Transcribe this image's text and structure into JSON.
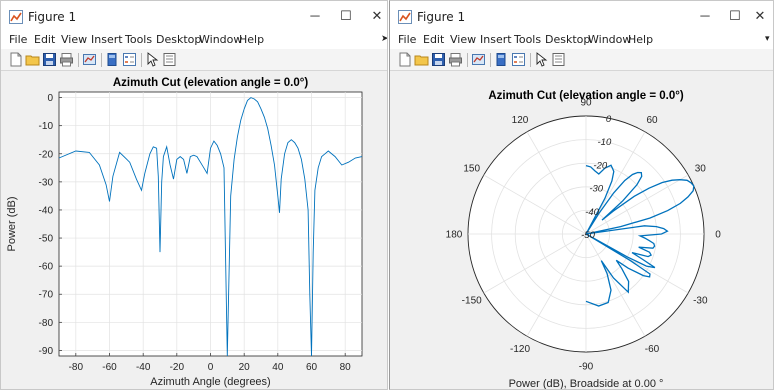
{
  "left_window": {
    "title": "Figure 1",
    "controls": {
      "minimize": "─",
      "maximize": "☐",
      "close": "✕"
    },
    "menu": [
      {
        "label": "File"
      },
      {
        "label": "Edit"
      },
      {
        "label": "View"
      },
      {
        "label": "Insert"
      },
      {
        "label": "Tools"
      },
      {
        "label": "Desktop"
      },
      {
        "label": "Window"
      },
      {
        "label": "Help"
      }
    ],
    "menu_overflow": "➤",
    "toolbar_icons": [
      "new-figure-icon",
      "open-file-icon",
      "save-icon",
      "print-icon",
      "link-plot-icon",
      "insert-colorbar-icon",
      "insert-legend-icon",
      "edit-plot-icon",
      "property-inspector-icon"
    ]
  },
  "right_window": {
    "title": "Figure 1",
    "controls": {
      "minimize": "─",
      "maximize": "☐",
      "close": "✕"
    },
    "menu": [
      {
        "label": "File"
      },
      {
        "label": "Edit"
      },
      {
        "label": "View"
      },
      {
        "label": "Insert"
      },
      {
        "label": "Tools"
      },
      {
        "label": "Desktop"
      },
      {
        "label": "Window"
      },
      {
        "label": "Help"
      }
    ],
    "menu_overflow": "▾",
    "toolbar_icons": [
      "new-figure-icon",
      "open-file-icon",
      "save-icon",
      "print-icon",
      "link-plot-icon",
      "insert-colorbar-icon",
      "insert-legend-icon",
      "edit-plot-icon",
      "property-inspector-icon"
    ]
  },
  "colors": {
    "line": "#0072bd",
    "axes_bg": "#ffffff",
    "grid": "#e2e2e2",
    "figure_bg": "#f0f0f0"
  },
  "chart_data": [
    {
      "type": "line",
      "title": "Azimuth Cut (elevation angle = 0.0°)",
      "xlabel": "Azimuth Angle (degrees)",
      "ylabel": "Power (dB)",
      "xlim": [
        -90,
        90
      ],
      "ylim": [
        -92,
        2
      ],
      "xticks": [
        -80,
        -60,
        -40,
        -20,
        0,
        20,
        40,
        60,
        80
      ],
      "yticks": [
        0,
        -10,
        -20,
        -30,
        -40,
        -50,
        -60,
        -70,
        -80,
        -90
      ],
      "grid": true,
      "series": [
        {
          "x": [
            -90,
            -80,
            -72,
            -66,
            -62,
            -60,
            -58,
            -54,
            -48,
            -44,
            -41,
            -39,
            -36,
            -34,
            -32,
            -31,
            -30,
            -29,
            -28,
            -26,
            -24,
            -22,
            -20,
            -18,
            -16,
            -14,
            -12,
            -10,
            -8,
            -6,
            -4,
            -2,
            0,
            2,
            4,
            6,
            8,
            10,
            12,
            14,
            16,
            18,
            20,
            22,
            24,
            26,
            28,
            30,
            32,
            34,
            36,
            38,
            40,
            41,
            42,
            44,
            46,
            48,
            50,
            52,
            54,
            56,
            58,
            59,
            60,
            61,
            62,
            64,
            66,
            68,
            70,
            74,
            78,
            82,
            86,
            90
          ],
          "y": [
            -21.5,
            -19,
            -19.5,
            -24,
            -31,
            -37,
            -28,
            -19.5,
            -23,
            -29,
            -33,
            -27,
            -20,
            -17.5,
            -18,
            -28,
            -55,
            -30,
            -21,
            -17.5,
            -24,
            -29,
            -22,
            -21,
            -22,
            -27,
            -21,
            -20.5,
            -21,
            -23,
            -25,
            -27,
            -18,
            -15.5,
            -17,
            -20,
            -25,
            -92,
            -35,
            -22,
            -14,
            -8,
            -4,
            -1,
            0,
            -0.5,
            -1.5,
            -4,
            -7,
            -11,
            -17,
            -24,
            -35,
            -41,
            -29,
            -20,
            -16,
            -15,
            -16,
            -18,
            -22,
            -29,
            -40,
            -70,
            -92,
            -55,
            -33,
            -25,
            -21,
            -20,
            -19,
            -21,
            -24,
            -23,
            -21.5,
            -21
          ]
        }
      ]
    },
    {
      "type": "polar",
      "title": "Azimuth Cut (elevation angle = 0.0°)",
      "xlabel": "Power (dB), Broadside at 0.00 °",
      "angle_ticks": [
        0,
        30,
        60,
        90,
        120,
        150,
        180,
        -150,
        -120,
        -90,
        -60,
        -30
      ],
      "radial_ticks": [
        0,
        -10,
        -20,
        -30,
        -40,
        -50
      ],
      "rlim": [
        -50,
        0
      ],
      "grid": true,
      "series": [
        {
          "theta": [
            -90,
            -80,
            -72,
            -66,
            -62,
            -60,
            -58,
            -54,
            -48,
            -44,
            -41,
            -39,
            -36,
            -34,
            -32,
            -31,
            -30,
            -29,
            -28,
            -26,
            -24,
            -22,
            -20,
            -18,
            -16,
            -14,
            -12,
            -10,
            -8,
            -6,
            -4,
            -2,
            0,
            2,
            4,
            6,
            8,
            10,
            12,
            14,
            16,
            18,
            20,
            22,
            24,
            26,
            28,
            30,
            32,
            34,
            36,
            38,
            40,
            41,
            42,
            44,
            46,
            48,
            50,
            52,
            54,
            56,
            58,
            59,
            60,
            61,
            62,
            64,
            66,
            68,
            70,
            74,
            78,
            82,
            86,
            90
          ],
          "r": [
            -21.5,
            -19,
            -19.5,
            -24,
            -31,
            -37,
            -28,
            -19.5,
            -23,
            -29,
            -33,
            -27,
            -20,
            -17.5,
            -18,
            -28,
            -50,
            -30,
            -21,
            -17.5,
            -24,
            -29,
            -22,
            -21,
            -22,
            -27,
            -21,
            -20.5,
            -21,
            -23,
            -25,
            -27,
            -18,
            -15.5,
            -17,
            -20,
            -25,
            -50,
            -35,
            -22,
            -14,
            -8,
            -4,
            -1,
            0,
            -0.5,
            -1.5,
            -4,
            -7,
            -11,
            -17,
            -24,
            -35,
            -41,
            -29,
            -20,
            -16,
            -15,
            -16,
            -18,
            -22,
            -29,
            -40,
            -50,
            -50,
            -50,
            -33,
            -25,
            -21,
            -20,
            -19,
            -21,
            -24,
            -23,
            -21.5,
            -21
          ]
        }
      ]
    }
  ]
}
